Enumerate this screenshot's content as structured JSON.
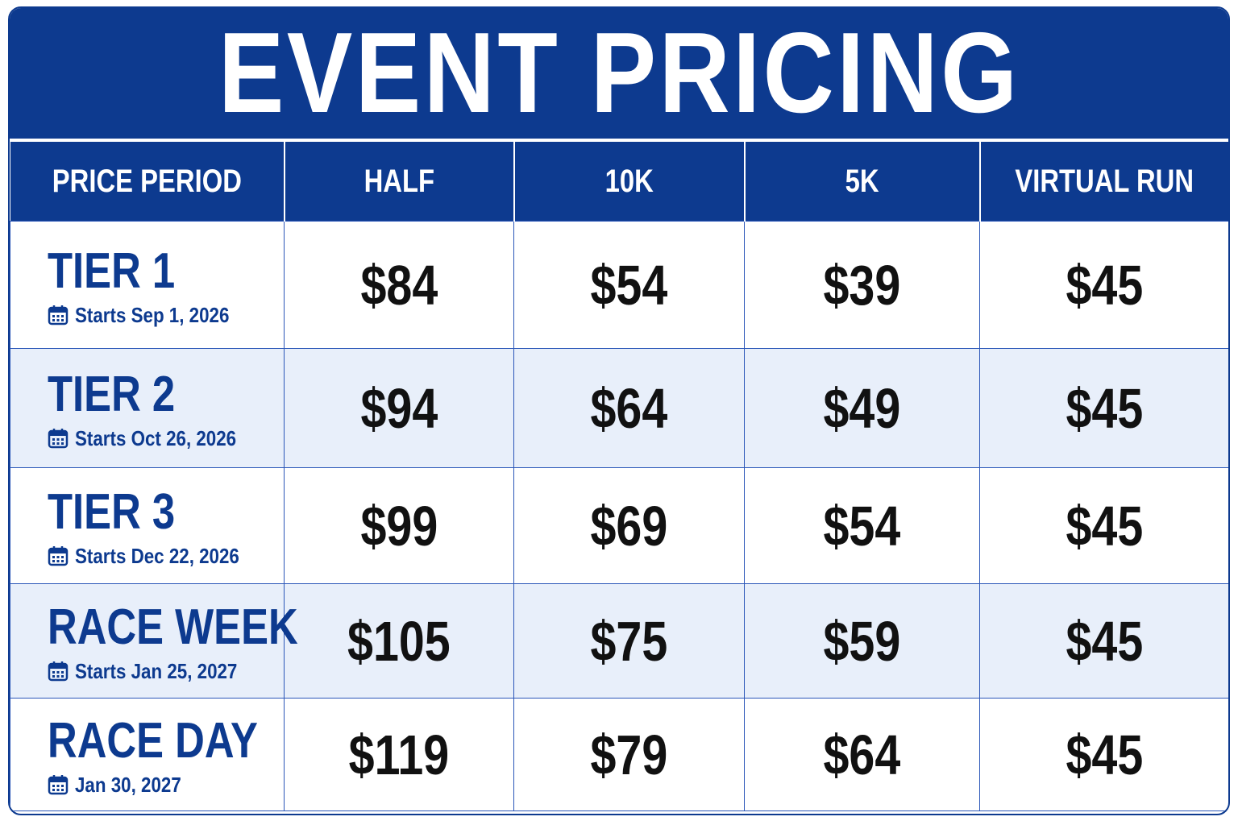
{
  "title": "EVENT PRICING",
  "table": {
    "header": [
      "PRICE PERIOD",
      "HALF",
      "10K",
      "5K",
      "VIRTUAL RUN"
    ],
    "rows": [
      {
        "period": "TIER 1",
        "date": "Starts Sep 1, 2026",
        "prices": [
          "$84",
          "$54",
          "$39",
          "$45"
        ]
      },
      {
        "period": "TIER 2",
        "date": "Starts Oct 26, 2026",
        "prices": [
          "$94",
          "$64",
          "$49",
          "$45"
        ]
      },
      {
        "period": "TIER 3",
        "date": "Starts Dec 22, 2026",
        "prices": [
          "$99",
          "$69",
          "$54",
          "$45"
        ]
      },
      {
        "period": "RACE WEEK",
        "date": "Starts Jan 25, 2027",
        "prices": [
          "$105",
          "$75",
          "$59",
          "$45"
        ]
      },
      {
        "period": "RACE DAY",
        "date": "Jan 30, 2027",
        "prices": [
          "$119",
          "$79",
          "$64",
          "$45"
        ]
      }
    ]
  }
}
